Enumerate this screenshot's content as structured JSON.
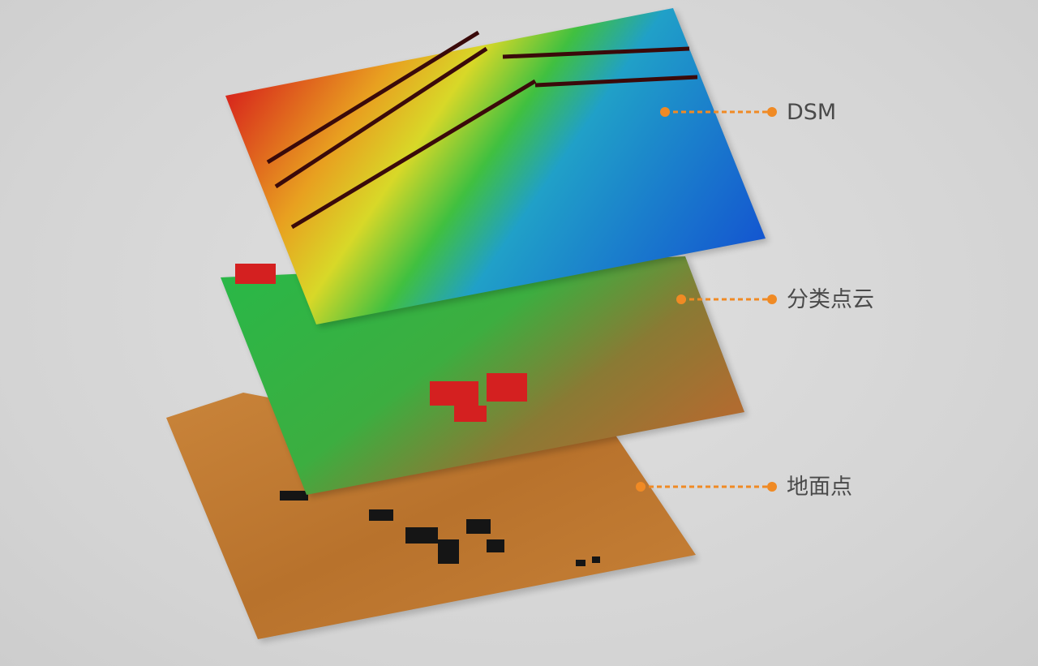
{
  "layers": [
    {
      "label": "DSM",
      "colors": [
        "#d62020",
        "#f0d020",
        "#30c040",
        "#1060d0"
      ]
    },
    {
      "label": "分类点云",
      "colors": [
        "#20b040",
        "#c07030",
        "#d02020"
      ]
    },
    {
      "label": "地面点",
      "colors": [
        "#c07a30",
        "#1a1a1a"
      ]
    }
  ],
  "accent_color": "#f08a24"
}
